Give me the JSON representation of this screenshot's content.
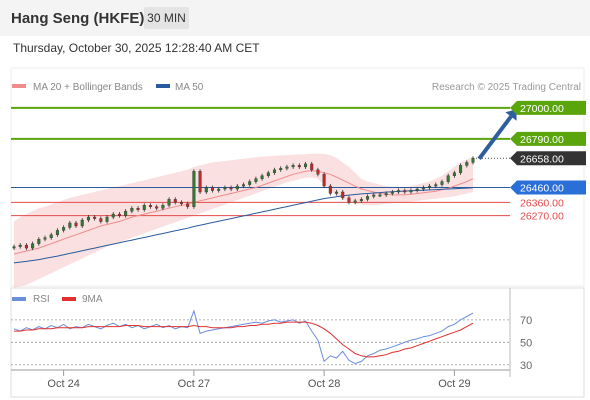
{
  "header": {
    "title": "Hang Seng (HKFE)",
    "timeframe": "30 MIN",
    "datetime": "Thursday, October 30, 2025 12:28:40 AM CET"
  },
  "colors": {
    "resistance": "#5ba50c",
    "support": "#e44a4a",
    "current_price": "#333333",
    "ma50": "#2a5b9e",
    "bollinger": "#f6c6c6",
    "ma20": "#f08c8c",
    "rsi": "#6b8fdd",
    "rsi_ma": "#e03030",
    "arrow": "#2d5f9e",
    "candle_up": "#2e7d2e",
    "candle_down": "#c62828"
  },
  "chart_data": [
    {
      "type": "candlestick",
      "legend": [
        {
          "name": "MA 20 + Bollinger Bands",
          "color": "#f08c8c"
        },
        {
          "name": "MA 50",
          "color": "#2a5b9e"
        }
      ],
      "watermark": "Research © 2025 Trading Central",
      "ylim": [
        25800,
        27080
      ],
      "x_ticks": [
        {
          "label": "Oct 24",
          "index": 8
        },
        {
          "label": "Oct 27",
          "index": 29
        },
        {
          "label": "Oct 28",
          "index": 50
        },
        {
          "label": "Oct 29",
          "index": 71
        }
      ],
      "levels": [
        {
          "value": 27000.0,
          "label": "27000.00",
          "kind": "resistance",
          "boxed": true
        },
        {
          "value": 26790.0,
          "label": "26790.00",
          "kind": "resistance",
          "boxed": true
        },
        {
          "value": 26658.0,
          "label": "26658.00",
          "kind": "current",
          "boxed": true
        },
        {
          "value": 26460.0,
          "label": "26460.00",
          "kind": "pivot",
          "boxed": true
        },
        {
          "value": 26360.0,
          "label": "26360.00",
          "kind": "support",
          "boxed": false
        },
        {
          "value": 26270.0,
          "label": "26270.00",
          "kind": "support",
          "boxed": false
        }
      ],
      "arrow": {
        "from_index": 75,
        "from_value": 26655,
        "to_index": 81,
        "to_value": 26990
      },
      "closes": [
        26060,
        26070,
        26050,
        26080,
        26110,
        26120,
        26140,
        26170,
        26190,
        26220,
        26200,
        26240,
        26260,
        26250,
        26230,
        26260,
        26280,
        26270,
        26300,
        26320,
        26310,
        26340,
        26330,
        26320,
        26340,
        26380,
        26360,
        26350,
        26330,
        26570,
        26430,
        26460,
        26440,
        26450,
        26460,
        26450,
        26470,
        26480,
        26500,
        26520,
        26540,
        26560,
        26580,
        26590,
        26600,
        26610,
        26600,
        26620,
        26580,
        26550,
        26470,
        26420,
        26430,
        26390,
        26360,
        26370,
        26380,
        26400,
        26410,
        26410,
        26420,
        26430,
        26440,
        26430,
        26440,
        26450,
        26460,
        26470,
        26480,
        26500,
        26540,
        26560,
        26610,
        26630,
        26658
      ],
      "ma20": [
        26010,
        26020,
        26030,
        26040,
        26050,
        26065,
        26080,
        26095,
        26110,
        26125,
        26140,
        26155,
        26170,
        26185,
        26200,
        26210,
        26220,
        26230,
        26245,
        26260,
        26270,
        26280,
        26290,
        26300,
        26310,
        26320,
        26330,
        26340,
        26345,
        26360,
        26370,
        26380,
        26390,
        26400,
        26410,
        26420,
        26430,
        26440,
        26450,
        26460,
        26475,
        26490,
        26505,
        26520,
        26535,
        26550,
        26560,
        26570,
        26575,
        26570,
        26560,
        26550,
        26530,
        26510,
        26490,
        26470,
        26450,
        26440,
        26430,
        26420,
        26415,
        26410,
        26410,
        26410,
        26415,
        26420,
        26425,
        26430,
        26435,
        26445,
        26455,
        26470,
        26485,
        26500,
        26520
      ],
      "bb_upper": [
        26230,
        26260,
        26280,
        26300,
        26320,
        26330,
        26345,
        26360,
        26375,
        26390,
        26400,
        26410,
        26420,
        26430,
        26440,
        26450,
        26460,
        26470,
        26480,
        26490,
        26500,
        26510,
        26520,
        26530,
        26540,
        26550,
        26560,
        26570,
        26580,
        26600,
        26610,
        26620,
        26630,
        26635,
        26640,
        26645,
        26650,
        26655,
        26660,
        26665,
        26670,
        26672,
        26675,
        26678,
        26680,
        26682,
        26684,
        26686,
        26688,
        26690,
        26688,
        26680,
        26660,
        26630,
        26600,
        26560,
        26520,
        26500,
        26490,
        26480,
        26470,
        26465,
        26460,
        26460,
        26470,
        26480,
        26490,
        26500,
        26520,
        26540,
        26570,
        26600,
        26630,
        26650,
        26670
      ],
      "bb_lower": [
        25780,
        25790,
        25800,
        25820,
        25840,
        25860,
        25880,
        25900,
        25920,
        25940,
        25960,
        25980,
        26000,
        26020,
        26040,
        26060,
        26075,
        26090,
        26105,
        26120,
        26135,
        26150,
        26165,
        26180,
        26195,
        26210,
        26225,
        26240,
        26255,
        26270,
        26285,
        26300,
        26315,
        26330,
        26345,
        26360,
        26375,
        26390,
        26405,
        26420,
        26435,
        26450,
        26465,
        26480,
        26495,
        26505,
        26515,
        26525,
        26530,
        26520,
        26480,
        26440,
        26400,
        26380,
        26360,
        26350,
        26345,
        26340,
        26340,
        26345,
        26350,
        26355,
        26360,
        26360,
        26365,
        26370,
        26375,
        26380,
        26385,
        26390,
        26395,
        26400,
        26410,
        26420,
        26430
      ],
      "ma50": [
        25950,
        25955,
        25960,
        25966,
        25972,
        25980,
        25988,
        25996,
        26005,
        26014,
        26023,
        26032,
        26041,
        26050,
        26059,
        26068,
        26077,
        26086,
        26095,
        26104,
        26113,
        26122,
        26131,
        26140,
        26149,
        26158,
        26167,
        26176,
        26185,
        26196,
        26205,
        26214,
        26223,
        26232,
        26241,
        26250,
        26259,
        26268,
        26277,
        26286,
        26295,
        26304,
        26313,
        26322,
        26331,
        26340,
        26349,
        26358,
        26367,
        26376,
        26385,
        26392,
        26398,
        26404,
        26409,
        26413,
        26417,
        26420,
        26423,
        26426,
        26429,
        26432,
        26434,
        26436,
        26438,
        26440,
        26442,
        26444,
        26446,
        26448,
        26450,
        26452,
        26454,
        26456,
        26458
      ]
    },
    {
      "type": "line",
      "legend": [
        {
          "name": "RSI",
          "color": "#6b8fdd"
        },
        {
          "name": "9MA",
          "color": "#e03030"
        }
      ],
      "ylim": [
        20,
        85
      ],
      "y_ticks": [
        30,
        50,
        70
      ],
      "rsi": [
        62,
        60,
        63,
        61,
        64,
        62,
        65,
        63,
        66,
        62,
        64,
        63,
        66,
        64,
        62,
        65,
        67,
        64,
        66,
        63,
        65,
        62,
        64,
        66,
        63,
        65,
        62,
        64,
        63,
        78,
        58,
        60,
        61,
        62,
        63,
        64,
        65,
        66,
        67,
        68,
        67,
        69,
        70,
        68,
        69,
        70,
        67,
        69,
        60,
        52,
        33,
        38,
        36,
        42,
        34,
        31,
        33,
        38,
        40,
        43,
        44,
        46,
        48,
        50,
        52,
        53,
        55,
        56,
        58,
        60,
        64,
        66,
        70,
        73,
        76
      ],
      "rsi_ma": [
        60,
        60,
        61,
        61,
        62,
        62,
        62,
        63,
        63,
        63,
        63,
        63,
        64,
        64,
        64,
        64,
        64,
        64,
        65,
        65,
        65,
        64,
        64,
        64,
        64,
        64,
        64,
        64,
        64,
        65,
        64,
        64,
        63,
        63,
        63,
        63,
        64,
        64,
        65,
        65,
        66,
        66,
        67,
        67,
        68,
        68,
        68,
        68,
        67,
        65,
        62,
        58,
        53,
        48,
        44,
        40,
        38,
        37,
        37,
        38,
        39,
        41,
        42,
        44,
        45,
        47,
        49,
        51,
        53,
        55,
        57,
        59,
        61,
        64,
        67
      ]
    }
  ]
}
